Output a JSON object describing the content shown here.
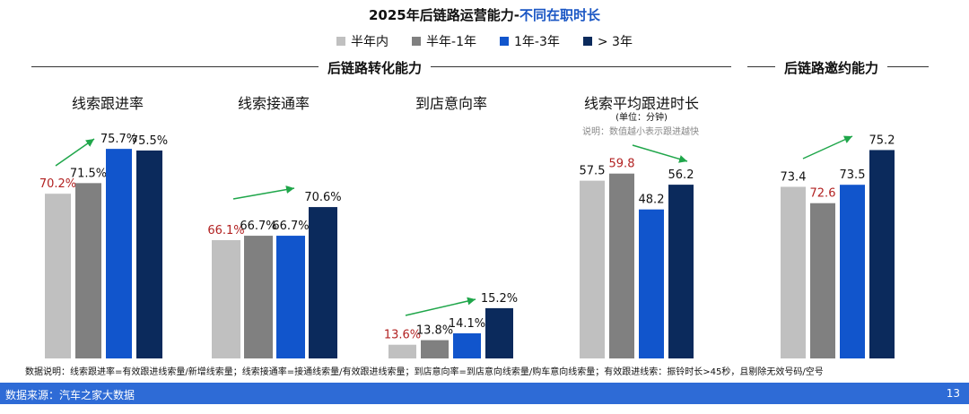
{
  "title_main": "2025年后链路运营能力-",
  "title_highlight": "不同在职时长",
  "legend": [
    {
      "label": "半年内",
      "color": "#c0c0c0"
    },
    {
      "label": "半年-1年",
      "color": "#808080"
    },
    {
      "label": "1年-3年",
      "color": "#1155cc"
    },
    {
      "label": "> 3年",
      "color": "#0b2a5c"
    }
  ],
  "section_left": "后链路转化能力",
  "section_right": "后链路邀约能力",
  "chart_data": [
    {
      "type": "bar",
      "title": "线索跟进率",
      "categories": [
        "半年内",
        "半年-1年",
        "1年-3年",
        "> 3年"
      ],
      "values": [
        70.2,
        71.5,
        75.7,
        75.5
      ],
      "labels": [
        "70.2%",
        "71.5%",
        "75.7%",
        "75.5%"
      ],
      "highlight_index": 0
    },
    {
      "type": "bar",
      "title": "线索接通率",
      "categories": [
        "半年内",
        "半年-1年",
        "1年-3年",
        "> 3年"
      ],
      "values": [
        66.1,
        66.7,
        66.7,
        70.6
      ],
      "labels": [
        "66.1%",
        "66.7%",
        "66.7%",
        "70.6%"
      ],
      "highlight_index": 0
    },
    {
      "type": "bar",
      "title": "到店意向率",
      "categories": [
        "半年内",
        "半年-1年",
        "1年-3年",
        "> 3年"
      ],
      "values": [
        13.6,
        13.8,
        14.1,
        15.2
      ],
      "labels": [
        "13.6%",
        "13.8%",
        "14.1%",
        "15.2%"
      ],
      "highlight_index": 0
    },
    {
      "type": "bar",
      "title": "线索平均跟进时长",
      "subtitle": "(单位：分钟)",
      "note": "说明：数值越小表示跟进越快",
      "categories": [
        "半年内",
        "半年-1年",
        "1年-3年",
        "> 3年"
      ],
      "values": [
        57.5,
        59.8,
        48.2,
        56.2
      ],
      "labels": [
        "57.5",
        "59.8",
        "48.2",
        "56.2"
      ],
      "highlight_index": 1
    },
    {
      "type": "bar",
      "title": "",
      "categories": [
        "半年内",
        "半年-1年",
        "1年-3年",
        "> 3年"
      ],
      "values": [
        73.4,
        72.6,
        73.5,
        75.2
      ],
      "labels": [
        "73.4",
        "72.6",
        "73.5",
        "75.2"
      ],
      "highlight_index": 1
    }
  ],
  "footnote": "数据说明：线索跟进率=有效跟进线索量/新增线索量；线索接通率=接通线索量/有效跟进线索量；到店意向率=到店意向线索量/购车意向线索量；有效跟进线索：振铃时长>45秒，且剔除无效号码/空号",
  "source": "数据来源：汽车之家大数据",
  "page_number": "13"
}
